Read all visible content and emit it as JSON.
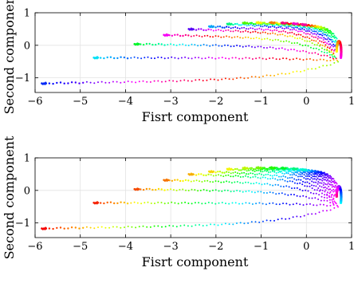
{
  "chart_data": [
    {
      "type": "scatter",
      "title": "",
      "xlabel": "Fisrt component",
      "ylabel": "Second component",
      "xlim": [
        -6,
        1
      ],
      "ylim": [
        -1.45,
        1
      ],
      "xticks": [
        -6,
        -5,
        -4,
        -3,
        -2,
        -1,
        0,
        1
      ],
      "yticks": [
        1,
        0,
        -1
      ],
      "grid": true,
      "legend": false,
      "color_mapping": "rainbow hue by curve position (red at top curve through violet/magenta back to red)",
      "curves": [
        {
          "start": [
            -5.85,
            -1.17
          ],
          "end": [
            0.7,
            -0.52
          ],
          "hue": 230
        },
        {
          "start": [
            -4.7,
            -0.38
          ],
          "end": [
            0.68,
            -0.47
          ],
          "hue": 185
        },
        {
          "start": [
            -3.8,
            0.04
          ],
          "end": [
            0.66,
            -0.42
          ],
          "hue": 130
        },
        {
          "start": [
            -3.15,
            0.32
          ],
          "end": [
            0.64,
            -0.38
          ],
          "hue": 300
        },
        {
          "start": [
            -2.6,
            0.5
          ],
          "end": [
            0.62,
            -0.33
          ],
          "hue": 260
        },
        {
          "start": [
            -2.15,
            0.58
          ],
          "end": [
            0.6,
            -0.28
          ],
          "hue": 200
        },
        {
          "start": [
            -1.75,
            0.66
          ],
          "end": [
            0.6,
            -0.23
          ],
          "hue": 150
        },
        {
          "start": [
            -1.4,
            0.69
          ],
          "end": [
            0.61,
            -0.18
          ],
          "hue": 100
        },
        {
          "start": [
            -1.1,
            0.7
          ],
          "end": [
            0.63,
            -0.13
          ],
          "hue": 60
        },
        {
          "start": [
            -0.8,
            0.7
          ],
          "end": [
            0.66,
            -0.08
          ],
          "hue": 30
        },
        {
          "start": [
            -0.55,
            0.69
          ],
          "end": [
            0.68,
            -0.04
          ],
          "hue": 330
        },
        {
          "start": [
            -0.3,
            0.67
          ],
          "end": [
            0.71,
            0.0
          ],
          "hue": 310
        },
        {
          "start": [
            -0.1,
            0.64
          ],
          "end": [
            0.73,
            0.04
          ],
          "hue": 320
        }
      ]
    },
    {
      "type": "scatter",
      "title": "",
      "xlabel": "Fisrt component",
      "ylabel": "Second component",
      "xlim": [
        -6,
        1
      ],
      "ylim": [
        -1.45,
        1
      ],
      "xticks": [
        -6,
        -5,
        -4,
        -3,
        -2,
        -1,
        0,
        1
      ],
      "yticks": [
        1,
        0,
        -1
      ],
      "grid": true,
      "legend": false,
      "color_mapping": "hue by angle: red at outer left tail, through orange, yellow, green, cyan, blue to magenta/red at the right cluster",
      "curves": [
        {
          "start": [
            -5.85,
            -1.17
          ],
          "end": [
            0.7,
            -0.52
          ],
          "hue": 0
        },
        {
          "start": [
            -4.7,
            -0.38
          ],
          "end": [
            0.68,
            -0.47
          ],
          "hue": 8
        },
        {
          "start": [
            -3.8,
            0.04
          ],
          "end": [
            0.66,
            -0.42
          ],
          "hue": 18
        },
        {
          "start": [
            -3.15,
            0.32
          ],
          "end": [
            0.64,
            -0.38
          ],
          "hue": 28
        },
        {
          "start": [
            -2.6,
            0.5
          ],
          "end": [
            0.62,
            -0.33
          ],
          "hue": 42
        },
        {
          "start": [
            -2.15,
            0.58
          ],
          "end": [
            0.6,
            -0.28
          ],
          "hue": 52
        },
        {
          "start": [
            -1.75,
            0.66
          ],
          "end": [
            0.6,
            -0.23
          ],
          "hue": 60
        },
        {
          "start": [
            -1.4,
            0.69
          ],
          "end": [
            0.61,
            -0.18
          ],
          "hue": 72
        },
        {
          "start": [
            -1.1,
            0.7
          ],
          "end": [
            0.63,
            -0.13
          ],
          "hue": 90
        },
        {
          "start": [
            -0.8,
            0.7
          ],
          "end": [
            0.66,
            -0.08
          ],
          "hue": 110
        },
        {
          "start": [
            -0.55,
            0.69
          ],
          "end": [
            0.68,
            -0.04
          ],
          "hue": 130
        },
        {
          "start": [
            -0.3,
            0.67
          ],
          "end": [
            0.71,
            0.0
          ],
          "hue": 150
        },
        {
          "start": [
            -0.1,
            0.64
          ],
          "end": [
            0.73,
            0.04
          ],
          "hue": 170
        }
      ]
    }
  ]
}
